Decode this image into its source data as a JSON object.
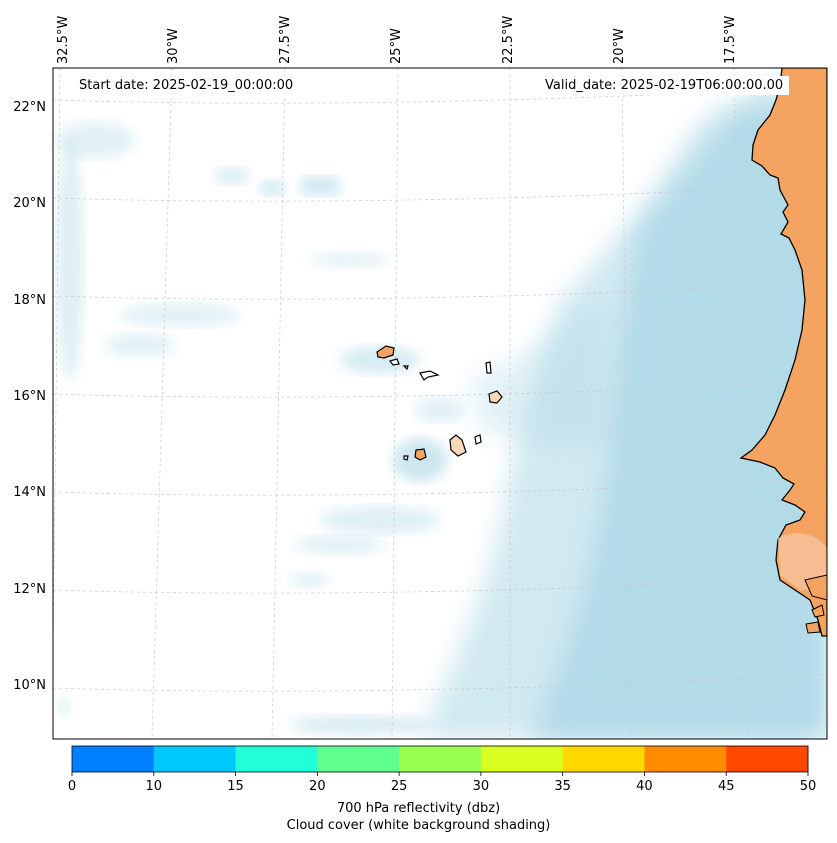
{
  "header": {
    "start_date": "Start date: 2025-02-19_00:00:00",
    "valid_date": "Valid_date: 2025-02-19T06:00:00.00"
  },
  "map": {
    "longitude_labels": [
      "32.5°W",
      "30°W",
      "27.5°W",
      "25°W",
      "22.5°W",
      "20°W",
      "17.5°W"
    ],
    "latitude_labels": [
      "22°N",
      "20°N",
      "18°N",
      "16°N",
      "14°N",
      "12°N",
      "10°N"
    ],
    "ocean_color": "#ffffff",
    "cloud_color": "#add8e6",
    "land_color": "#f4a460",
    "coastline_color": "#000000"
  },
  "colorbar": {
    "ticks": [
      "0",
      "10",
      "15",
      "20",
      "25",
      "30",
      "35",
      "40",
      "45",
      "50"
    ],
    "colors": [
      "#0080ff",
      "#00c8ff",
      "#20ffd8",
      "#60ff90",
      "#98ff50",
      "#d8ff20",
      "#ffd800",
      "#ff8c00",
      "#ff4800"
    ],
    "label_line1": "700 hPa reflectivity (dbz)",
    "label_line2": "Cloud cover (white background shading)"
  }
}
